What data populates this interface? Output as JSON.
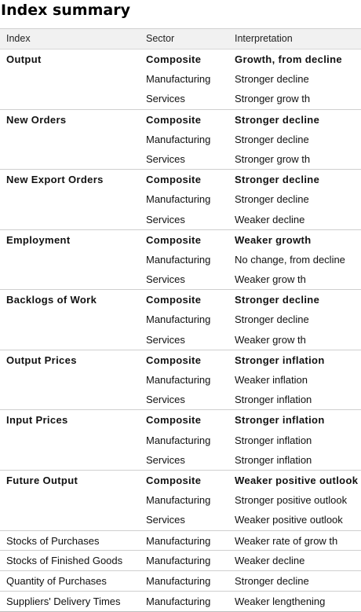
{
  "title": "Index summary",
  "headers": {
    "index": "Index",
    "sector": "Sector",
    "interpretation": "Interpretation"
  },
  "groups": [
    {
      "index": "Output",
      "rows": [
        {
          "sector": "Composite",
          "interpretation": "Growth, from decline"
        },
        {
          "sector": "Manufacturing",
          "interpretation": "Stronger decline"
        },
        {
          "sector": "Services",
          "interpretation": "Stronger grow th"
        }
      ]
    },
    {
      "index": "New Orders",
      "rows": [
        {
          "sector": "Composite",
          "interpretation": "Stronger decline"
        },
        {
          "sector": "Manufacturing",
          "interpretation": "Stronger decline"
        },
        {
          "sector": "Services",
          "interpretation": "Stronger grow th"
        }
      ]
    },
    {
      "index": "New Export Orders",
      "rows": [
        {
          "sector": "Composite",
          "interpretation": "Stronger decline"
        },
        {
          "sector": "Manufacturing",
          "interpretation": "Stronger decline"
        },
        {
          "sector": "Services",
          "interpretation": "Weaker decline"
        }
      ]
    },
    {
      "index": "Employment",
      "rows": [
        {
          "sector": "Composite",
          "interpretation": "Weaker growth"
        },
        {
          "sector": "Manufacturing",
          "interpretation": "No change, from decline"
        },
        {
          "sector": "Services",
          "interpretation": "Weaker grow th"
        }
      ]
    },
    {
      "index": "Backlogs of Work",
      "rows": [
        {
          "sector": "Composite",
          "interpretation": "Stronger decline"
        },
        {
          "sector": "Manufacturing",
          "interpretation": "Stronger decline"
        },
        {
          "sector": "Services",
          "interpretation": "Weaker grow th"
        }
      ]
    },
    {
      "index": "Output Prices",
      "rows": [
        {
          "sector": "Composite",
          "interpretation": "Stronger inflation"
        },
        {
          "sector": "Manufacturing",
          "interpretation": "Weaker inflation"
        },
        {
          "sector": "Services",
          "interpretation": "Stronger inflation"
        }
      ]
    },
    {
      "index": "Input Prices",
      "rows": [
        {
          "sector": "Composite",
          "interpretation": "Stronger inflation"
        },
        {
          "sector": "Manufacturing",
          "interpretation": "Stronger inflation"
        },
        {
          "sector": "Services",
          "interpretation": "Stronger inflation"
        }
      ]
    },
    {
      "index": "Future Output",
      "rows": [
        {
          "sector": "Composite",
          "interpretation": "Weaker positive outlook"
        },
        {
          "sector": "Manufacturing",
          "interpretation": "Stronger positive outlook"
        },
        {
          "sector": "Services",
          "interpretation": "Weaker positive outlook"
        }
      ]
    }
  ],
  "single_rows": [
    {
      "index": "Stocks of Purchases",
      "sector": "Manufacturing",
      "interpretation": "Weaker rate of grow th"
    },
    {
      "index": "Stocks of Finished Goods",
      "sector": "Manufacturing",
      "interpretation": "Weaker decline"
    },
    {
      "index": "Quantity of Purchases",
      "sector": "Manufacturing",
      "interpretation": "Stronger decline"
    },
    {
      "index": "Suppliers' Delivery Times",
      "sector": "Manufacturing",
      "interpretation": "Weaker lengthening"
    }
  ]
}
